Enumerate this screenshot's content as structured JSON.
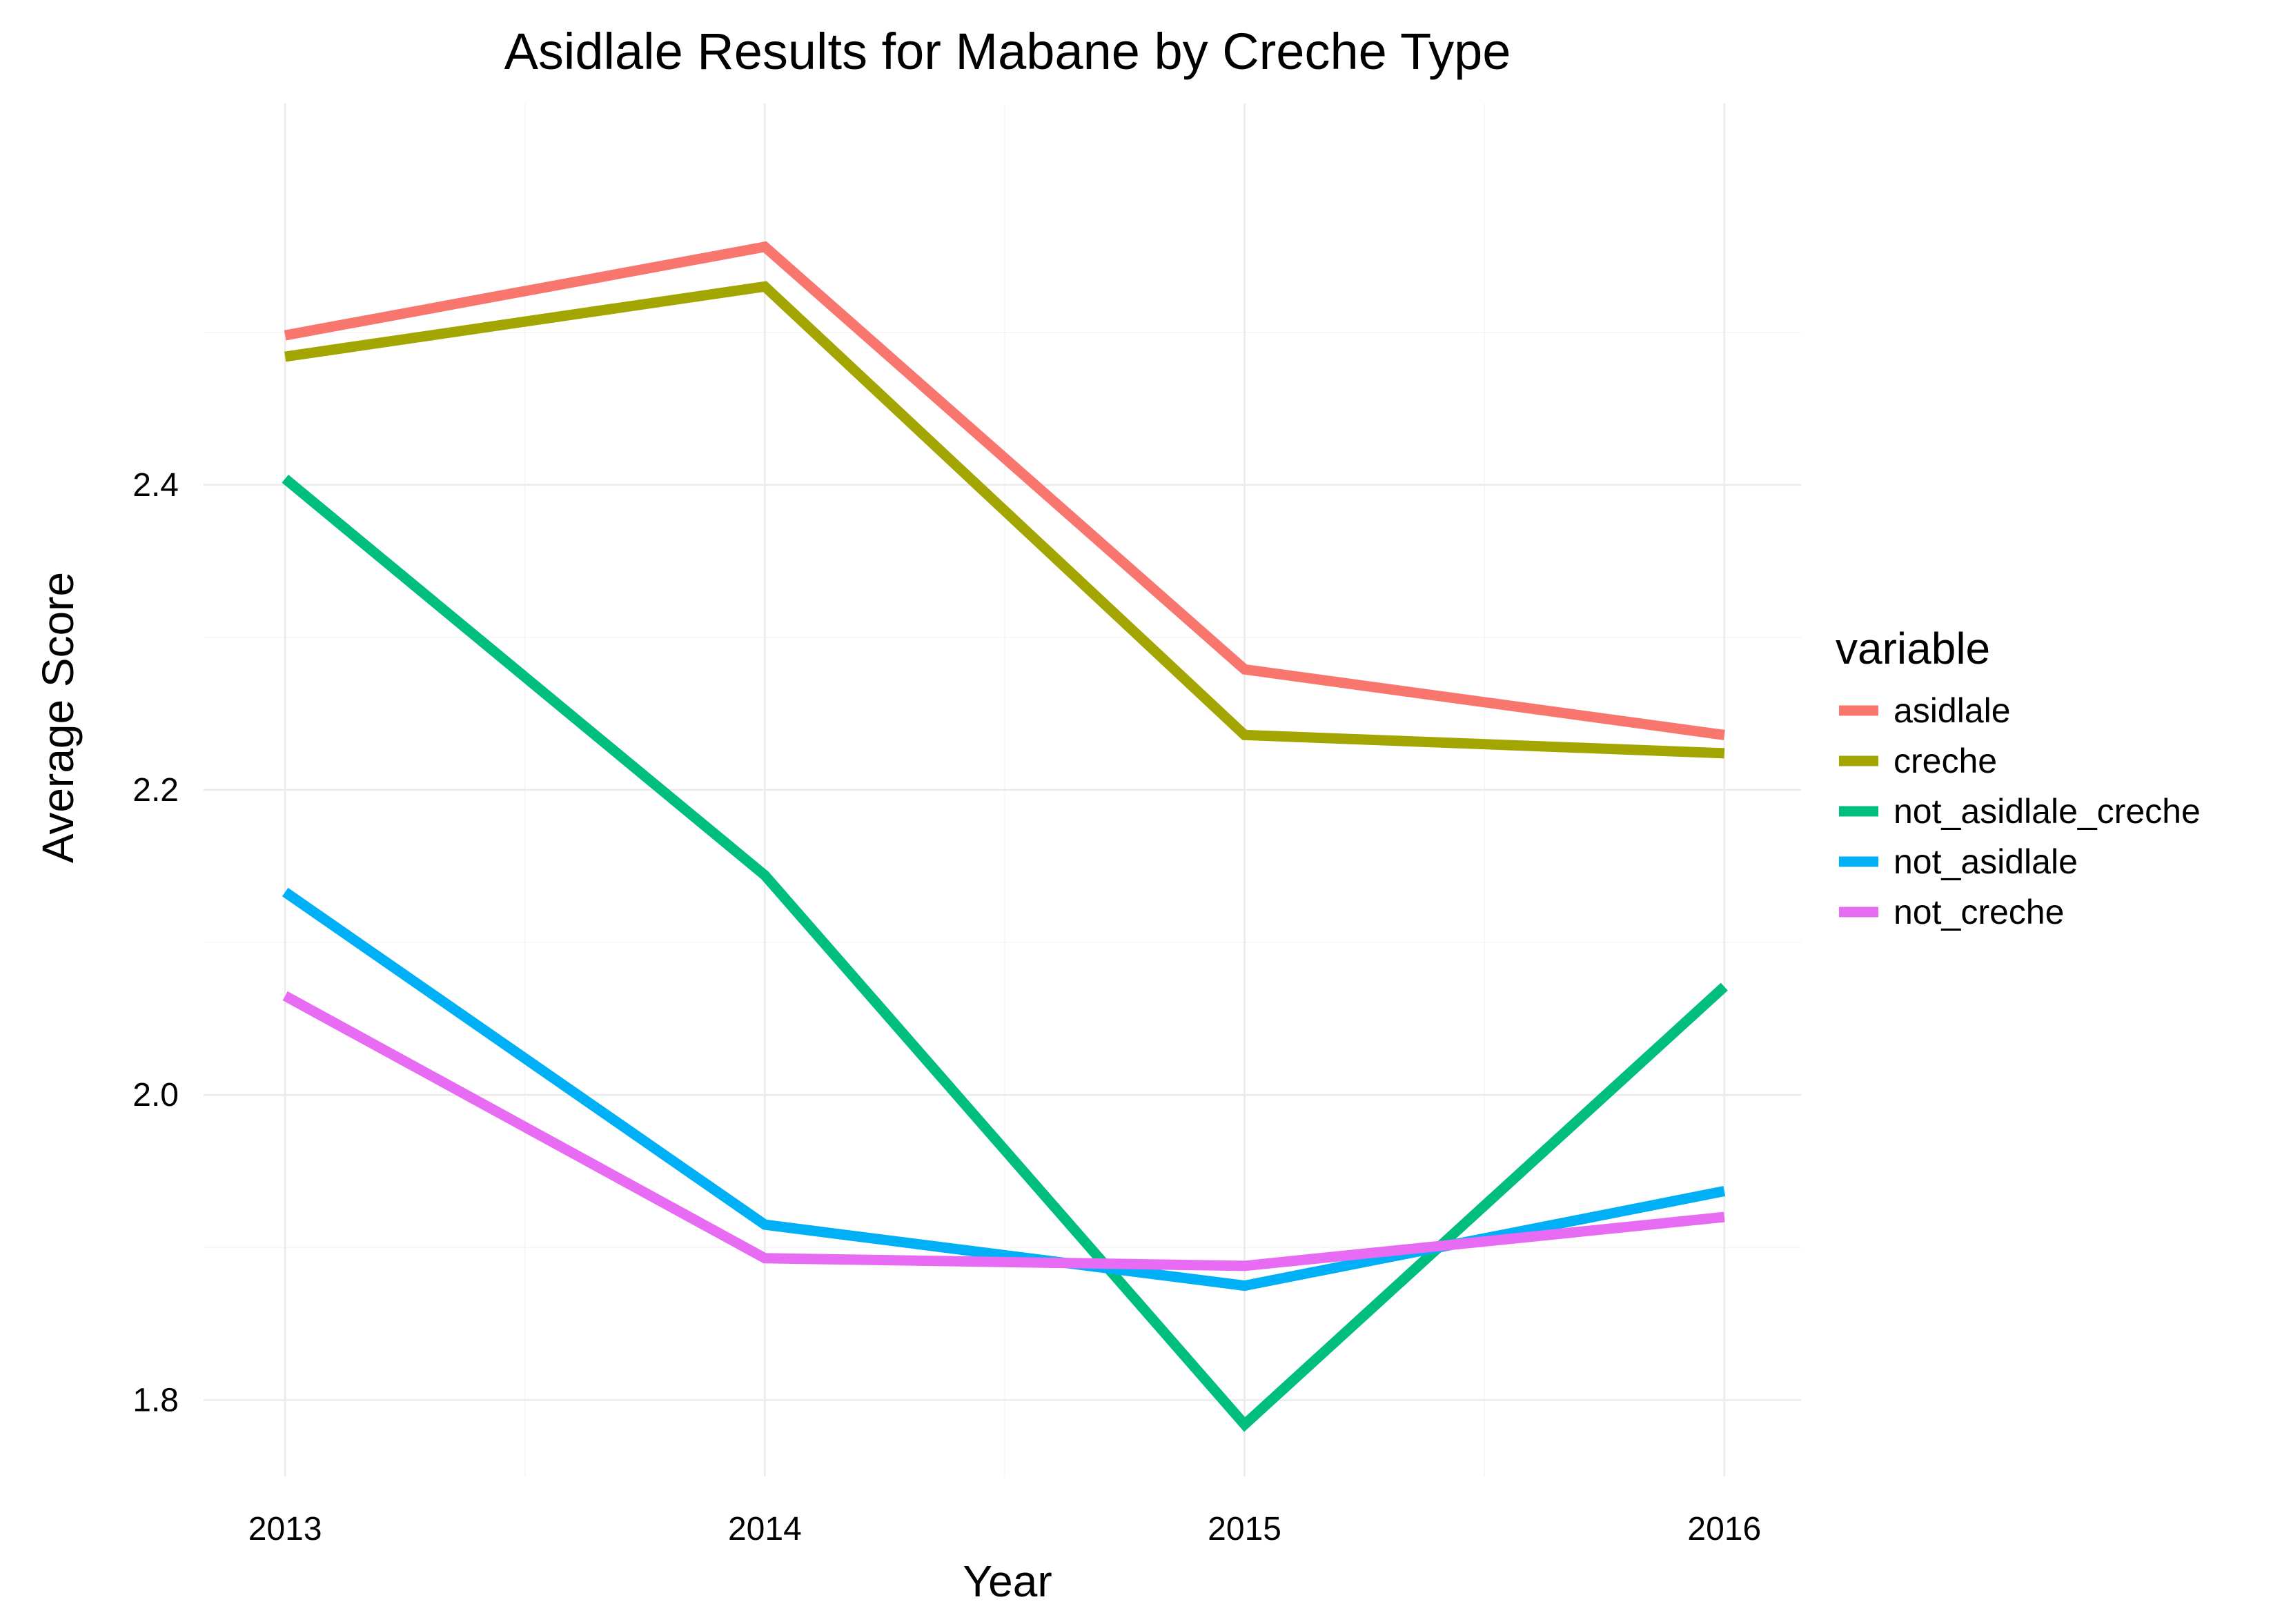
{
  "chart_data": {
    "type": "line",
    "title": "Asidlale Results for Mabane by Creche Type",
    "xlabel": "Year",
    "ylabel": "Average Score",
    "x": [
      2013,
      2014,
      2015,
      2016
    ],
    "x_tick_labels": [
      "2013",
      "2014",
      "2015",
      "2016"
    ],
    "y_ticks": [
      1.8,
      2.0,
      2.2,
      2.4
    ],
    "y_tick_labels": [
      "1.8",
      "2.0",
      "2.2",
      "2.4"
    ],
    "xlim": [
      2012.83,
      2016.16
    ],
    "ylim": [
      1.75,
      2.65
    ],
    "grid": true,
    "legend_title": "variable",
    "legend_position": "right",
    "series": [
      {
        "name": "asidlale",
        "color": "#F8766D",
        "values": [
          2.498,
          2.556,
          2.279,
          2.236
        ]
      },
      {
        "name": "creche",
        "color": "#A3A500",
        "values": [
          2.484,
          2.53,
          2.236,
          2.224
        ]
      },
      {
        "name": "not_asidlale_creche",
        "color": "#00BF7D",
        "values": [
          2.404,
          2.144,
          1.784,
          2.071
        ]
      },
      {
        "name": "not_asidlale",
        "color": "#00B0F6",
        "values": [
          2.133,
          1.915,
          1.875,
          1.937
        ]
      },
      {
        "name": "not_creche",
        "color": "#E76BF3",
        "values": [
          2.065,
          1.893,
          1.888,
          1.92
        ]
      }
    ]
  }
}
